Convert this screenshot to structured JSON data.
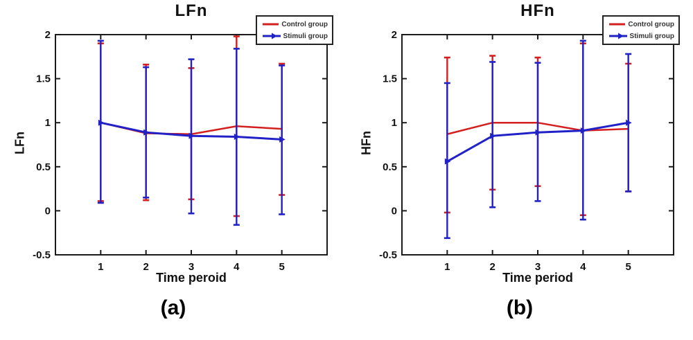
{
  "colors": {
    "control": "#d41f1f",
    "stimuli": "#2121c8",
    "axis": "#1a1a1a"
  },
  "chart_data": [
    {
      "type": "line",
      "error_bars": true,
      "panel_label": "(a)",
      "title": "LFn",
      "xlabel": "Time peroid",
      "ylabel": "LFn",
      "x": [
        1,
        2,
        3,
        4,
        5
      ],
      "xtick_labels": [
        "1",
        "2",
        "3",
        "4",
        "5"
      ],
      "xlim": [
        0,
        6
      ],
      "yticks": [
        2,
        1.5,
        1,
        0.5,
        0,
        -0.5
      ],
      "ytick_labels": [
        "2",
        "1.5",
        "1",
        "0.5",
        "0",
        "-0.5"
      ],
      "ylim": [
        -0.5,
        2
      ],
      "grid": false,
      "legend_position": "top-right",
      "series": [
        {
          "name": "Control group",
          "color": "#d41f1f",
          "marker": "none",
          "values": [
            1.0,
            0.88,
            0.87,
            0.96,
            0.93
          ],
          "err_high": [
            1.9,
            1.66,
            1.62,
            1.98,
            1.67
          ],
          "err_low": [
            0.11,
            0.12,
            0.13,
            -0.06,
            0.18
          ]
        },
        {
          "name": "Stimuli group",
          "color": "#2121c8",
          "marker": "triangle-right",
          "values": [
            1.0,
            0.89,
            0.85,
            0.84,
            0.81
          ],
          "err_high": [
            1.93,
            1.63,
            1.72,
            1.84,
            1.65
          ],
          "err_low": [
            0.09,
            0.15,
            -0.03,
            -0.16,
            -0.04
          ]
        }
      ]
    },
    {
      "type": "line",
      "error_bars": true,
      "panel_label": "(b)",
      "title": "HFn",
      "xlabel": "Time period",
      "ylabel": "HFn",
      "x": [
        1,
        2,
        3,
        4,
        5
      ],
      "xtick_labels": [
        "1",
        "2",
        "3",
        "4",
        "5"
      ],
      "xlim": [
        0,
        6
      ],
      "yticks": [
        2,
        1.5,
        1,
        0.5,
        0,
        -0.5
      ],
      "ytick_labels": [
        "2",
        "1.5",
        "1",
        "0.5",
        "0",
        "-0.5"
      ],
      "ylim": [
        -0.5,
        2
      ],
      "grid": false,
      "legend_position": "top-right",
      "series": [
        {
          "name": "Control group",
          "color": "#d41f1f",
          "marker": "none",
          "values": [
            0.87,
            1.0,
            1.0,
            0.91,
            0.93
          ],
          "err_high": [
            1.74,
            1.76,
            1.74,
            1.9,
            1.67
          ],
          "err_low": [
            -0.02,
            0.24,
            0.28,
            -0.05,
            0.22
          ]
        },
        {
          "name": "Stimuli group",
          "color": "#2121c8",
          "marker": "triangle-right",
          "values": [
            0.56,
            0.85,
            0.89,
            0.91,
            1.0
          ],
          "err_high": [
            1.45,
            1.69,
            1.68,
            1.93,
            1.78
          ],
          "err_low": [
            -0.31,
            0.04,
            0.11,
            -0.1,
            0.22
          ]
        }
      ]
    }
  ]
}
